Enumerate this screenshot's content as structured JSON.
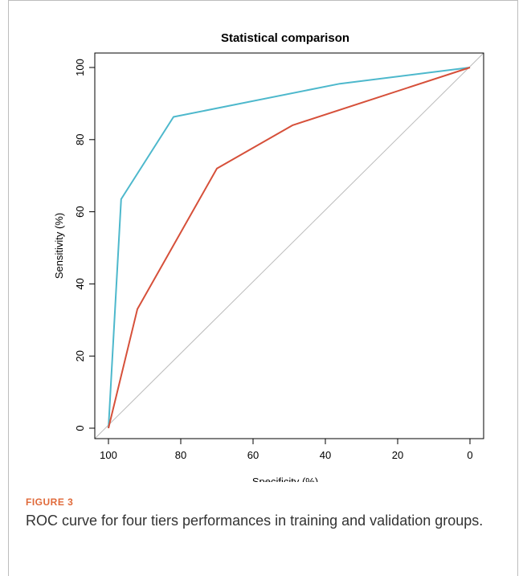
{
  "chart_data": {
    "type": "line",
    "title": "Statistical comparison",
    "xlabel": "Specificity (%)",
    "ylabel": "Sensitivity (%)",
    "xlim": [
      100,
      0
    ],
    "ylim": [
      0,
      100
    ],
    "x_ticks": [
      100,
      80,
      60,
      40,
      20,
      0
    ],
    "y_ticks": [
      0,
      20,
      40,
      60,
      80,
      100
    ],
    "diagonal": {
      "color": "#bbbbbb"
    },
    "series": [
      {
        "color": "#4db8cc",
        "points": [
          [
            100,
            0
          ],
          [
            96.5,
            63.5
          ],
          [
            82,
            86.3
          ],
          [
            36,
            95.5
          ],
          [
            0,
            100
          ]
        ]
      },
      {
        "color": "#d6503a",
        "points": [
          [
            100,
            0
          ],
          [
            92,
            33
          ],
          [
            70,
            72
          ],
          [
            49,
            84
          ],
          [
            0,
            100
          ]
        ]
      }
    ]
  },
  "caption": {
    "label": "FIGURE 3",
    "text": "ROC curve for four tiers performances in training and validation groups."
  }
}
